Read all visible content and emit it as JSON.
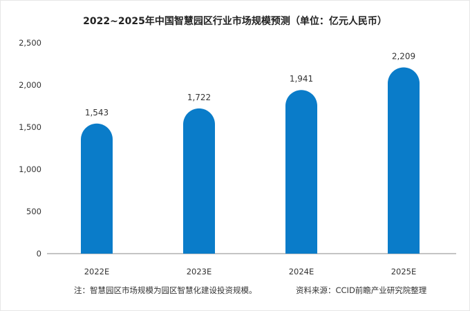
{
  "chart_data": {
    "type": "bar",
    "title": "2022~2025年中国智慧园区行业市场规模预测（单位：亿元人民币）",
    "categories": [
      "2022E",
      "2023E",
      "2024E",
      "2025E"
    ],
    "values": [
      1543,
      1722,
      1941,
      2209
    ],
    "value_labels": [
      "1,543",
      "1,722",
      "1,941",
      "2,209"
    ],
    "ylim": [
      0,
      2500
    ],
    "yticks": [
      0,
      500,
      1000,
      1500,
      2000,
      2500
    ],
    "ytick_labels": [
      "0",
      "500",
      "1,000",
      "1,500",
      "2,000",
      "2,500"
    ],
    "grid": false,
    "bar_color": "#0a7cc9",
    "axis_color": "#888888"
  },
  "footer": {
    "note": "注：智慧园区市场规模为园区智慧化建设投资规模。",
    "source": "资料来源：CCID前瞻产业研究院整理"
  }
}
